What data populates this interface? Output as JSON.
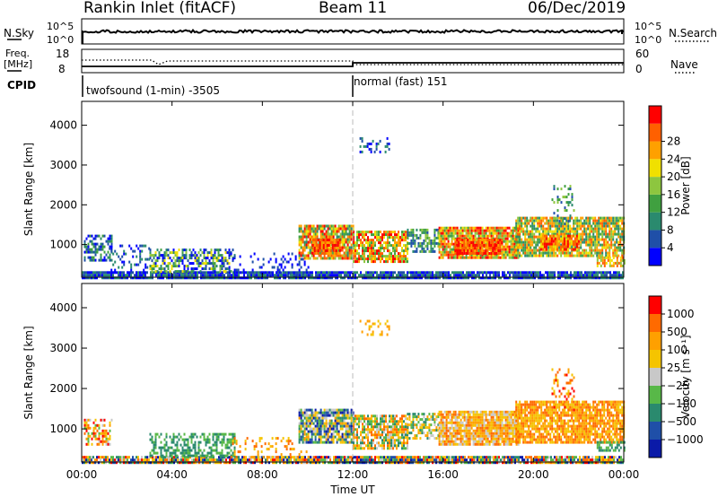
{
  "header": {
    "title": "Rankin Inlet (fitACF)",
    "beam": "Beam 11",
    "date": "06/Dec/2019"
  },
  "panel_nsky": {
    "left_label": "N.Sky",
    "left_ticks": [
      "10^5",
      "10^0"
    ],
    "right_label": "N.Search",
    "right_ticks": [
      "10^5",
      "10^0"
    ]
  },
  "panel_freq": {
    "left_label_1": "Freq.",
    "left_label_2": "[MHz]",
    "left_ticks": [
      "18",
      "8"
    ],
    "right_label": "Nave",
    "right_ticks": [
      "60",
      "0"
    ]
  },
  "cpid": {
    "label": "CPID",
    "segments": [
      {
        "text": "twofsound (1-min) -3505",
        "start_hour": 0
      },
      {
        "text": "normal (fast) 151",
        "start_hour": 12
      }
    ]
  },
  "chart_data": [
    {
      "type": "heatmap",
      "name": "power",
      "ylabel": "Slant Range [km]",
      "ylim": [
        180,
        4600
      ],
      "yticks": [
        1000,
        2000,
        3000,
        4000
      ],
      "xlim": [
        0,
        24
      ],
      "xticks": [
        0,
        4,
        8,
        12,
        16,
        20,
        24
      ],
      "xtick_labels": [
        "00:00",
        "04:00",
        "08:00",
        "12:00",
        "16:00",
        "20:00",
        "00:00"
      ],
      "colorbar_label": "Power [dB]",
      "colorbar_ticks": [
        "4",
        "8",
        "12",
        "16",
        "20",
        "24",
        "28"
      ],
      "colorbar_colors": [
        "#0000ff",
        "#1f4fa8",
        "#2a8a6e",
        "#40a040",
        "#8dc63f",
        "#f0e000",
        "#ffa000",
        "#ff6000",
        "#ff0000"
      ]
    },
    {
      "type": "heatmap",
      "name": "velocity",
      "ylabel": "Slant Range [km]",
      "ylim": [
        180,
        4600
      ],
      "yticks": [
        1000,
        2000,
        3000,
        4000
      ],
      "xlim": [
        0,
        24
      ],
      "xticks": [
        0,
        4,
        8,
        12,
        16,
        20,
        24
      ],
      "xtick_labels": [
        "00:00",
        "04:00",
        "08:00",
        "12:00",
        "16:00",
        "20:00",
        "00:00"
      ],
      "xlabel": "Time UT",
      "colorbar_label": "Velocity [m s⁻¹]",
      "colorbar_ticks": [
        "1000",
        "500",
        "100",
        "25",
        "−25",
        "−100",
        "−500",
        "−1000"
      ],
      "colorbar_colors": [
        "#0a1aa8",
        "#1f4fa8",
        "#2a8a6e",
        "#58b848",
        "#c8c8c8",
        "#f5c400",
        "#ffa000",
        "#ff6a00",
        "#ff0000"
      ]
    }
  ]
}
